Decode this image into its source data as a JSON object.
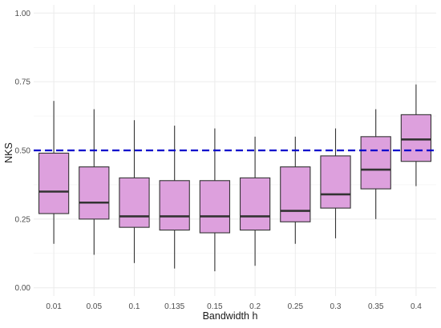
{
  "chart_data": {
    "type": "boxplot",
    "title": "",
    "xlabel": "Bandwidth h",
    "ylabel": "NKS",
    "ylim": [
      -0.03,
      1.03
    ],
    "yticks": [
      0.0,
      0.25,
      0.5,
      0.75,
      1.0
    ],
    "ytick_labels": [
      "0.00",
      "0.25",
      "0.50",
      "0.75",
      "1.00"
    ],
    "grid": true,
    "reference_line": {
      "y": 0.5,
      "color": "#0000cc",
      "style": "dashed"
    },
    "box_fill": "#dda0dd",
    "box_stroke": "#333333",
    "categories": [
      "0.01",
      "0.05",
      "0.1",
      "0.135",
      "0.15",
      "0.2",
      "0.25",
      "0.3",
      "0.35",
      "0.4"
    ],
    "boxes": [
      {
        "min": 0.16,
        "q1": 0.27,
        "median": 0.35,
        "q3": 0.49,
        "max": 0.68
      },
      {
        "min": 0.12,
        "q1": 0.25,
        "median": 0.31,
        "q3": 0.44,
        "max": 0.65
      },
      {
        "min": 0.09,
        "q1": 0.22,
        "median": 0.26,
        "q3": 0.4,
        "max": 0.61
      },
      {
        "min": 0.07,
        "q1": 0.21,
        "median": 0.26,
        "q3": 0.39,
        "max": 0.59
      },
      {
        "min": 0.06,
        "q1": 0.2,
        "median": 0.26,
        "q3": 0.39,
        "max": 0.58
      },
      {
        "min": 0.08,
        "q1": 0.21,
        "median": 0.26,
        "q3": 0.4,
        "max": 0.55
      },
      {
        "min": 0.16,
        "q1": 0.24,
        "median": 0.28,
        "q3": 0.44,
        "max": 0.55
      },
      {
        "min": 0.18,
        "q1": 0.29,
        "median": 0.34,
        "q3": 0.48,
        "max": 0.58
      },
      {
        "min": 0.25,
        "q1": 0.36,
        "median": 0.43,
        "q3": 0.55,
        "max": 0.65
      },
      {
        "min": 0.37,
        "q1": 0.46,
        "median": 0.54,
        "q3": 0.63,
        "max": 0.74
      }
    ]
  }
}
